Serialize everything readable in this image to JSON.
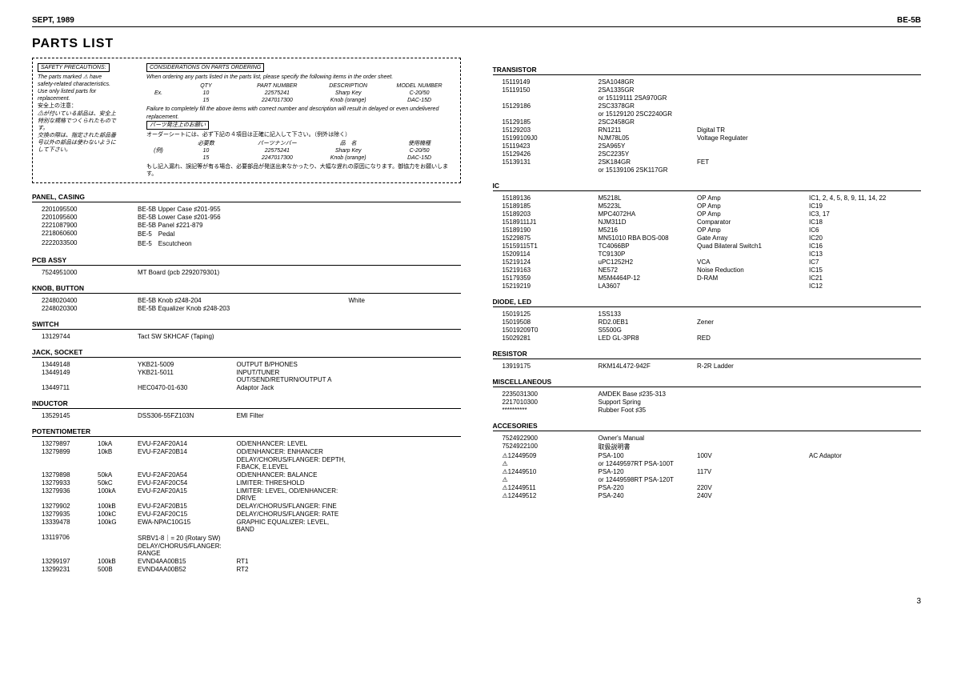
{
  "header": {
    "left": "SEPT, 1989",
    "right": "BE-5B"
  },
  "title": "PARTS LIST",
  "safety": {
    "head": "SAFETY PRECAUTIONS:",
    "lines": [
      "The parts marked ⚠ have",
      "safety-related characteristics.",
      "Use only listed parts for",
      "replacement."
    ],
    "jp_head": "安全上の注意：",
    "jp_lines": [
      "⚠が付いている部品は、安全上",
      "特別な規格でつくられたもので",
      "す。",
      "交換の際は、指定された部品番",
      "号以外の部品は使わないように",
      "して下さい。"
    ]
  },
  "ordering": {
    "head": "CONSIDERATIONS ON PARTS ORDERING",
    "line1": "When ordering any parts listed in the parts list, please specify the following items in the order sheet.",
    "cols": [
      "QTY",
      "PART NUMBER",
      "DESCRIPTION",
      "MODEL NUMBER"
    ],
    "ex_label": "Ex.",
    "rows": [
      [
        "10",
        "22575241",
        "Sharp Key",
        "C-20/50"
      ],
      [
        "15",
        "2247017300",
        "Knob (orange)",
        "DAC-15D"
      ]
    ],
    "line2": "Failure to completely fill the above items with correct number and description will result in delayed or even undelivered replacement.",
    "jp_head": "パーツ発注上のお願い",
    "jp_line1": "オーダーシートには、必ず下記の４項目は正確に記入して下さい。（例外は除く）",
    "jp_cols": [
      "必要数",
      "パーツナンバー",
      "品　名",
      "使用機種"
    ],
    "jp_ex": "(例)",
    "jp_rows": [
      [
        "10",
        "22575241",
        "Sharp Key",
        "C-20/50"
      ],
      [
        "15",
        "2247017300",
        "Knob (orange)",
        "DAC-15D"
      ]
    ],
    "jp_line2": "もし記入漏れ、誤記等が有る場合、必要部品が発送出来なかったり、大幅な遅れの原因になります。御協力をお願いします。"
  },
  "sections_left": [
    {
      "head": "PANEL, CASING",
      "rows": [
        [
          "2201095500",
          "",
          "BE-5B Upper Case ♯201-955",
          "",
          ""
        ],
        [
          "2201095600",
          "",
          "BE-5B Lower Case ♯201-956",
          "",
          ""
        ],
        [
          "2221087900",
          "",
          "BE-5B Panel ♯221-879",
          "",
          ""
        ],
        [
          "2218060600",
          "",
          "BE-5　Pedal",
          "",
          ""
        ],
        [
          "2222033500",
          "",
          "BE-5　Escutcheon",
          "",
          ""
        ]
      ]
    },
    {
      "head": "PCB ASSY",
      "rows": [
        [
          "7524951000",
          "",
          "MT Board (pcb 2292079301)",
          "",
          ""
        ]
      ]
    },
    {
      "head": "KNOB, BUTTON",
      "rows": [
        [
          "2248020400",
          "",
          "BE-5B Knob ♯248-204",
          "",
          "White"
        ],
        [
          "2248020300",
          "",
          "BE-5B Equalizer Knob ♯248-203",
          "",
          ""
        ]
      ]
    },
    {
      "head": "SWITCH",
      "rows": [
        [
          "13129744",
          "",
          "Tact SW SKHCAF (Taping)",
          "",
          ""
        ]
      ]
    },
    {
      "head": "JACK, SOCKET",
      "rows": [
        [
          "13449148",
          "",
          "YKB21-5009",
          "OUTPUT B/PHONES",
          ""
        ],
        [
          "13449149",
          "",
          "YKB21-5011",
          "INPUT/TUNER OUT/SEND/RETURN/OUTPUT A",
          ""
        ],
        [
          "13449711",
          "",
          "HEC0470-01-630",
          "Adaptor Jack",
          ""
        ]
      ]
    },
    {
      "head": "INDUCTOR",
      "rows": [
        [
          "13529145",
          "",
          "DSS306-55FZ103N",
          "EMI Filter",
          ""
        ]
      ]
    },
    {
      "head": "POTENTIOMETER",
      "rows": [
        [
          "13279897",
          "10kA",
          "EVU-F2AF20A14",
          "OD/ENHANCER: LEVEL",
          ""
        ],
        [
          "13279899",
          "10kB",
          "EVU-F2AF20B14",
          "OD/ENHANCER: ENHANCER",
          ""
        ],
        [
          "",
          "",
          "",
          "DELAY/CHORUS/FLANGER: DEPTH, F.BACK, E.LEVEL",
          ""
        ],
        [
          "13279898",
          "50kA",
          "EVU-F2AF20A54",
          "OD/ENHANCER: BALANCE",
          ""
        ],
        [
          "13279933",
          "50kC",
          "EVU-F2AF20C54",
          "LIMITER: THRESHOLD",
          ""
        ],
        [
          "13279936",
          "100kA",
          "EVU-F2AF20A15",
          "LIMITER: LEVEL, OD/ENHANCER: DRIVE",
          ""
        ],
        [
          "13279902",
          "100kB",
          "EVU-F2AF20B15",
          "DELAY/CHORUS/FLANGER: FINE",
          ""
        ],
        [
          "13279935",
          "100kC",
          "EVU-F2AF20C15",
          "DELAY/CHORUS/FLANGER: RATE",
          ""
        ],
        [
          "13339478",
          "100kG",
          "EWA-NPAC10G15",
          "GRAPHIC EQUALIZER: LEVEL, BAND",
          ""
        ],
        [
          "13119706",
          "",
          "SRBV1-8｜= 20 (Rotary SW) DELAY/CHORUS/FLANGER: RANGE",
          "",
          ""
        ],
        [
          "13299197",
          "100kB",
          "EVND4AA00B15",
          "RT1",
          ""
        ],
        [
          "13299231",
          "500B",
          "EVND4AA00B52",
          "RT2",
          ""
        ]
      ]
    }
  ],
  "sections_right": [
    {
      "head": "TRANSISTOR",
      "rows": [
        [
          "15119149",
          "",
          "2SA1048GR",
          "",
          ""
        ],
        [
          "15119150",
          "",
          "2SA1335GR",
          "",
          ""
        ],
        [
          "",
          "",
          "or 15119111 2SA970GR",
          "",
          ""
        ],
        [
          "15129186",
          "",
          "2SC3378GR",
          "",
          ""
        ],
        [
          "",
          "",
          "or 15129120 2SC2240GR",
          "",
          ""
        ],
        [
          "15129185",
          "",
          "2SC2458GR",
          "",
          ""
        ],
        [
          "15129203",
          "",
          "RN1211",
          "Digital TR",
          ""
        ],
        [
          "15199109J0",
          "",
          "NJM78L05",
          "Voltage Regulater",
          ""
        ],
        [
          "15119423",
          "",
          "2SA965Y",
          "",
          ""
        ],
        [
          "15129426",
          "",
          "2SC2235Y",
          "",
          ""
        ],
        [
          "15139131",
          "",
          "2SK184GR",
          "FET",
          ""
        ],
        [
          "",
          "",
          "or 15139106 2SK117GR",
          "",
          ""
        ]
      ]
    },
    {
      "head": "IC",
      "rows": [
        [
          "15189136",
          "",
          "M5218L",
          "OP Amp",
          "IC1, 2, 4, 5, 8, 9, 11, 14, 22"
        ],
        [
          "15189185",
          "",
          "M5223L",
          "OP Amp",
          "IC19"
        ],
        [
          "15189203",
          "",
          "MPC4072HA",
          "OP Amp",
          "IC3, 17"
        ],
        [
          "15189111J1",
          "",
          "NJM311D",
          "Comparator",
          "IC18"
        ],
        [
          "15189190",
          "",
          "M5216",
          "OP Amp",
          "IC6"
        ],
        [
          "15229875",
          "",
          "MN51010 RBA BOS-008",
          "Gate Array",
          "IC20"
        ],
        [
          "15159115T1",
          "",
          "TC4066BP",
          "Quad Bilateral Switch1",
          "IC16"
        ],
        [
          "15209114",
          "",
          "TC9130P",
          "",
          "IC13"
        ],
        [
          "15219124",
          "",
          "uPC1252H2",
          "VCA",
          "IC7"
        ],
        [
          "15219163",
          "",
          "NE572",
          "Noise Reduction",
          "IC15"
        ],
        [
          "15179359",
          "",
          "M5M4464P-12",
          "D-RAM",
          "IC21"
        ],
        [
          "15219219",
          "",
          "LA3607",
          "",
          "IC12"
        ]
      ]
    },
    {
      "head": "DIODE, LED",
      "rows": [
        [
          "15019125",
          "",
          "1SS133",
          "",
          ""
        ],
        [
          "15019508",
          "",
          "RD2.0EB1",
          "Zener",
          ""
        ],
        [
          "15019209T0",
          "",
          "S5500G",
          "",
          ""
        ],
        [
          "15029281",
          "",
          "LED GL-3PR8",
          "RED",
          ""
        ]
      ]
    },
    {
      "head": "RESISTOR",
      "rows": [
        [
          "13919175",
          "",
          "RKM14L472-942F",
          "R-2R Ladder",
          ""
        ]
      ]
    },
    {
      "head": "MISCELLANEOUS",
      "rows": [
        [
          "2235031300",
          "",
          "AMDEK Base ♯235-313",
          "",
          ""
        ],
        [
          "2217010300",
          "",
          "Support Spring",
          "",
          ""
        ],
        [
          "**********",
          "",
          "Rubber Foot ♯35",
          "",
          ""
        ]
      ]
    },
    {
      "head": "ACCESORIES",
      "rows": [
        [
          "7524922900",
          "",
          "Owner's Manual",
          "",
          ""
        ],
        [
          "7524922100",
          "",
          "取扱説明書",
          "",
          ""
        ],
        [
          "⚠12449509",
          "",
          "PSA-100",
          "100V",
          "AC Adaptor"
        ],
        [
          "⚠",
          "",
          "or 12449597RT PSA-100T",
          "",
          ""
        ],
        [
          "⚠12449510",
          "",
          "PSA-120",
          "117V",
          ""
        ],
        [
          "⚠",
          "",
          "or 12449598RT PSA-120T",
          "",
          ""
        ],
        [
          "⚠12449511",
          "",
          "PSA-220",
          "220V",
          ""
        ],
        [
          "⚠12449512",
          "",
          "PSA-240",
          "240V",
          ""
        ]
      ]
    }
  ],
  "page_num": "3"
}
